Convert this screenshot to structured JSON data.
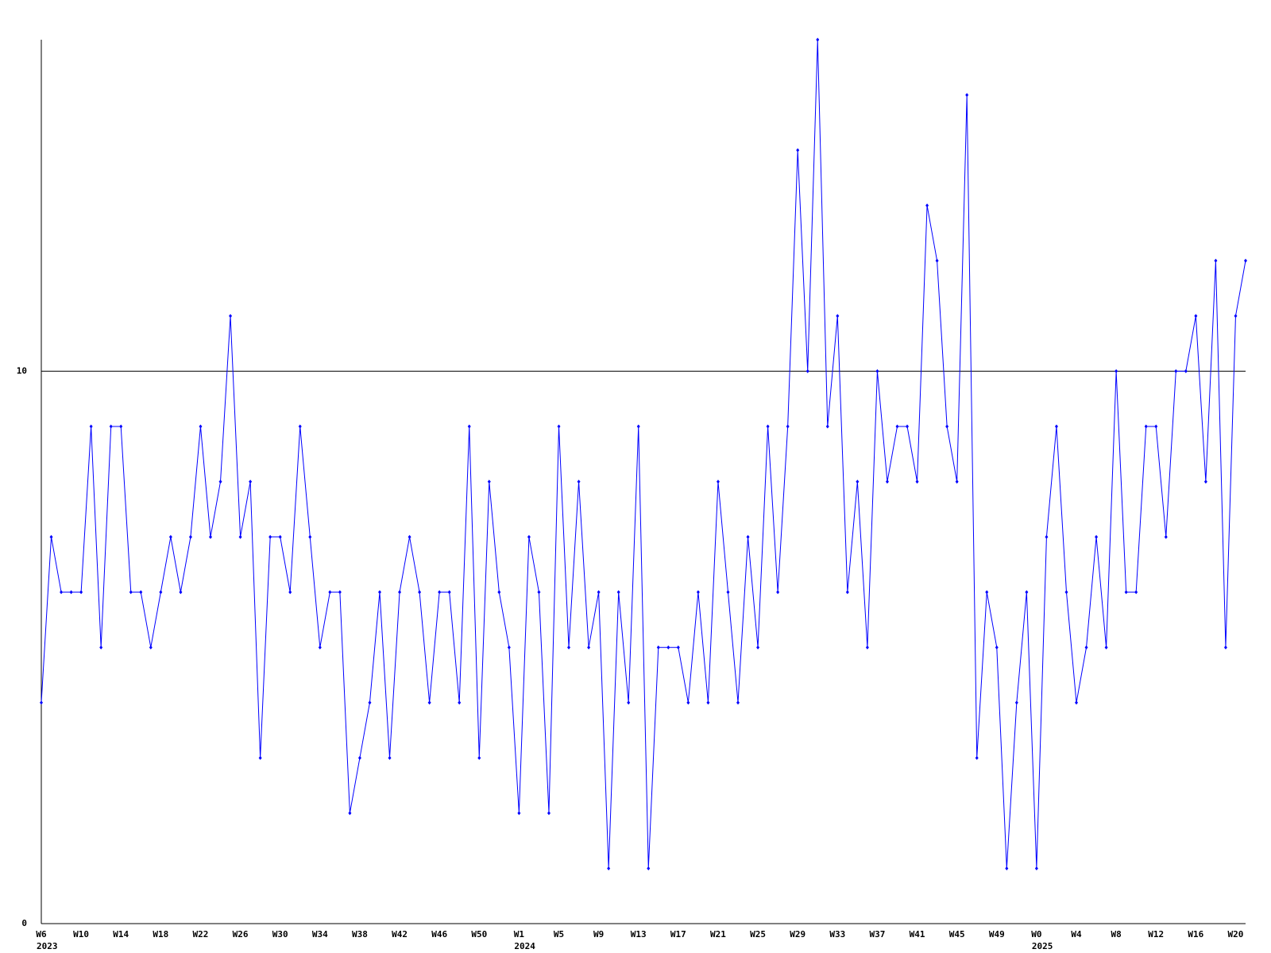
{
  "chart_data": {
    "type": "line",
    "categories": [
      "W6",
      null,
      null,
      null,
      "W10",
      null,
      null,
      null,
      "W14",
      null,
      null,
      null,
      "W18",
      null,
      null,
      null,
      "W22",
      null,
      null,
      null,
      "W26",
      null,
      null,
      null,
      "W30",
      null,
      null,
      null,
      "W34",
      null,
      null,
      null,
      "W38",
      null,
      null,
      null,
      "W42",
      null,
      null,
      null,
      "W46",
      null,
      null,
      null,
      "W50",
      null,
      null,
      null,
      "W1",
      null,
      null,
      null,
      "W5",
      null,
      null,
      null,
      "W9",
      null,
      null,
      null,
      "W13",
      null,
      null,
      null,
      "W17",
      null,
      null,
      null,
      "W21",
      null,
      null,
      null,
      "W25",
      null,
      null,
      null,
      "W29",
      null,
      null,
      null,
      "W33",
      null,
      null,
      null,
      "W37",
      null,
      null,
      null,
      "W41",
      null,
      null,
      null,
      "W45",
      null,
      null,
      null,
      "W49",
      null,
      null,
      null,
      "W0",
      null,
      null,
      null,
      "W4",
      null,
      null,
      null,
      "W8",
      null,
      null,
      null,
      "W12",
      null,
      null,
      null,
      "W16",
      null,
      null,
      null,
      "W20",
      null
    ],
    "year_labels": [
      "2023",
      null,
      null,
      null,
      null,
      null,
      null,
      null,
      null,
      null,
      null,
      null,
      null,
      null,
      null,
      null,
      null,
      null,
      null,
      null,
      null,
      null,
      null,
      null,
      null,
      null,
      null,
      null,
      null,
      null,
      null,
      null,
      null,
      null,
      null,
      null,
      null,
      null,
      null,
      null,
      null,
      null,
      null,
      null,
      null,
      null,
      null,
      null,
      "2024",
      null,
      null,
      null,
      null,
      null,
      null,
      null,
      null,
      null,
      null,
      null,
      null,
      null,
      null,
      null,
      null,
      null,
      null,
      null,
      null,
      null,
      null,
      null,
      null,
      null,
      null,
      null,
      null,
      null,
      null,
      null,
      null,
      null,
      null,
      null,
      null,
      null,
      null,
      null,
      null,
      null,
      null,
      null,
      null,
      null,
      null,
      null,
      null,
      null,
      null,
      null,
      "2025",
      null,
      null,
      null,
      null,
      null,
      null,
      null,
      null,
      null,
      null,
      null,
      null,
      null,
      null,
      null,
      null,
      null,
      null,
      null,
      null,
      null
    ],
    "series": [
      {
        "color": "#0000ff",
        "values": [
          4,
          7,
          6,
          6,
          6,
          9,
          5,
          9,
          9,
          6,
          6,
          5,
          6,
          7,
          6,
          7,
          9,
          7,
          8,
          11,
          7,
          8,
          3,
          7,
          7,
          6,
          9,
          7,
          5,
          6,
          6,
          2,
          3,
          4,
          6,
          3,
          6,
          7,
          6,
          4,
          6,
          6,
          4,
          9,
          3,
          8,
          6,
          5,
          2,
          7,
          6,
          2,
          9,
          5,
          8,
          5,
          6,
          1,
          6,
          4,
          9,
          1,
          5,
          5,
          5,
          4,
          6,
          4,
          8,
          6,
          4,
          7,
          5,
          9,
          6,
          9,
          14,
          10,
          16,
          9,
          11,
          6,
          8,
          5,
          10,
          8,
          9,
          9,
          8,
          13,
          12,
          9,
          8,
          15,
          3,
          6,
          5,
          1,
          4,
          6,
          1,
          7,
          9,
          6,
          4,
          5,
          7,
          5,
          10,
          6,
          6,
          9,
          9,
          7,
          10,
          10,
          11,
          8,
          12,
          5,
          11,
          12
        ]
      }
    ],
    "ylim": [
      0,
      16
    ],
    "yticks": [
      0,
      10
    ],
    "grid": true,
    "grid_color": "#000000"
  }
}
